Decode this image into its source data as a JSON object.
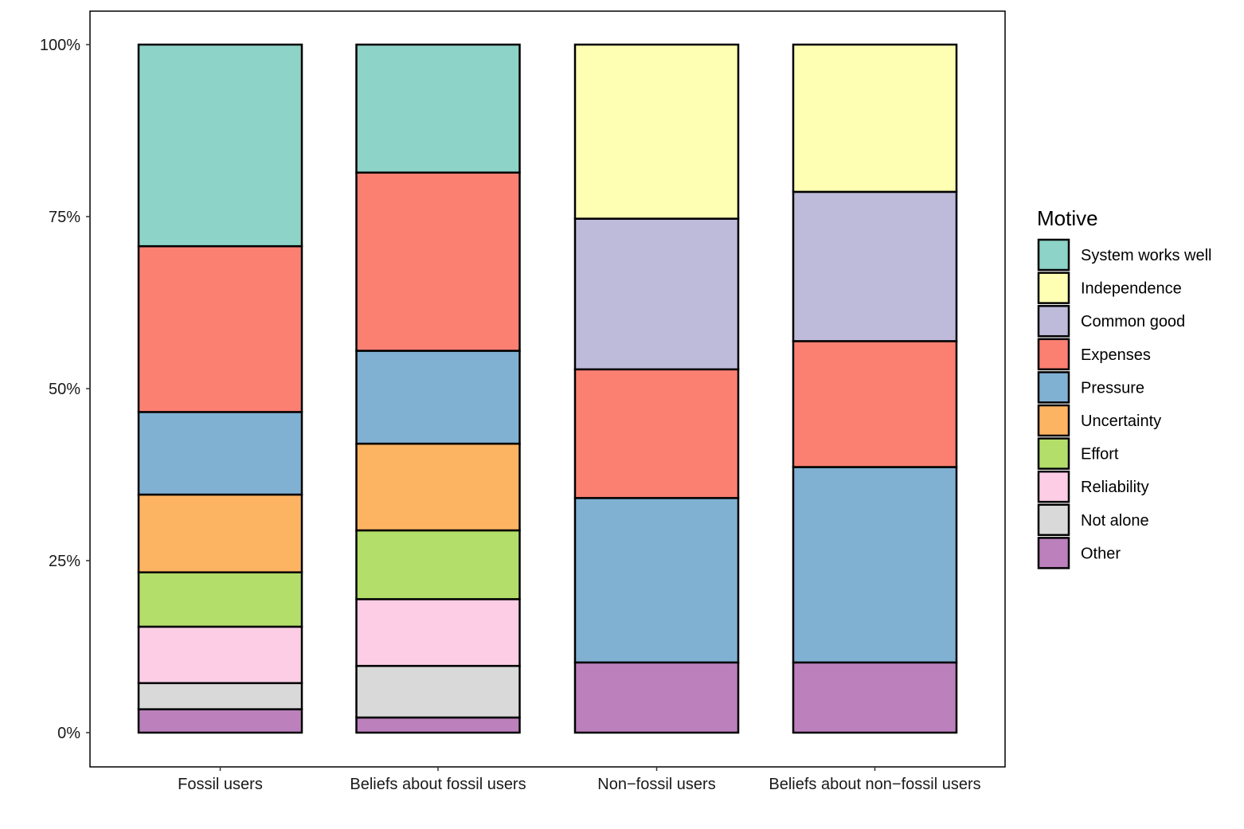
{
  "chart_data": {
    "type": "bar",
    "stacked": true,
    "percent": true,
    "categories": [
      "Fossil users",
      "Beliefs about fossil users",
      "Non−fossil users",
      "Beliefs about non−fossil users"
    ],
    "series": [
      {
        "name": "Other",
        "color": "#BC80BD",
        "values": [
          3.4,
          2.2,
          10.2,
          10.2
        ]
      },
      {
        "name": "Not alone",
        "color": "#D9D9D9",
        "values": [
          3.8,
          7.5,
          0,
          0
        ]
      },
      {
        "name": "Reliability",
        "color": "#FCCDE5",
        "values": [
          8.2,
          9.7,
          0,
          0
        ]
      },
      {
        "name": "Effort",
        "color": "#B3DE69",
        "values": [
          7.9,
          10.0,
          0,
          0
        ]
      },
      {
        "name": "Uncertainty",
        "color": "#FDB462",
        "values": [
          11.3,
          12.6,
          0,
          0
        ]
      },
      {
        "name": "Pressure",
        "color": "#80B1D3",
        "values": [
          12.0,
          13.5,
          23.9,
          28.4
        ]
      },
      {
        "name": "Expenses",
        "color": "#FB8072",
        "values": [
          24.1,
          25.9,
          18.7,
          18.3
        ]
      },
      {
        "name": "Common good",
        "color": "#BEBADA",
        "values": [
          0,
          0,
          21.9,
          21.7
        ]
      },
      {
        "name": "Independence",
        "color": "#FFFFB3",
        "values": [
          0,
          0,
          25.3,
          21.4
        ]
      },
      {
        "name": "System works well",
        "color": "#8DD3C7",
        "values": [
          29.3,
          18.6,
          0,
          0
        ]
      }
    ],
    "legend": {
      "title": "Motive",
      "position": "right",
      "order": [
        "System works well",
        "Independence",
        "Common good",
        "Expenses",
        "Pressure",
        "Uncertainty",
        "Effort",
        "Reliability",
        "Not alone",
        "Other"
      ]
    },
    "y_ticks": [
      "0%",
      "25%",
      "50%",
      "75%",
      "100%"
    ],
    "y_tick_values": [
      0,
      25,
      50,
      75,
      100
    ],
    "ylim": [
      0,
      100
    ],
    "xlabel": "",
    "ylabel": "",
    "grid": false
  }
}
